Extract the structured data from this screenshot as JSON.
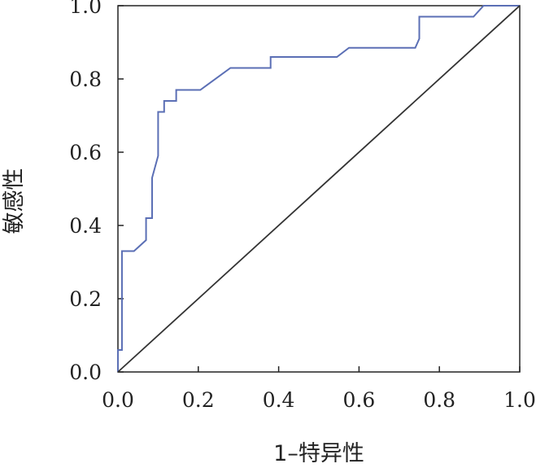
{
  "chart_data": {
    "type": "line",
    "title": "",
    "xlabel": "1–特异性",
    "ylabel": "敏感性",
    "xlim": [
      0,
      1
    ],
    "ylim": [
      0,
      1
    ],
    "x_ticks": [
      "0.0",
      "0.2",
      "0.4",
      "0.6",
      "0.8",
      "1.0"
    ],
    "y_ticks": [
      "0.0",
      "0.2",
      "0.4",
      "0.6",
      "0.8",
      "1.0"
    ],
    "grid": false,
    "legend": "none",
    "series": [
      {
        "color": "#5b6fb5",
        "points": [
          [
            0.0,
            0.0
          ],
          [
            0.0,
            0.06
          ],
          [
            0.01,
            0.06
          ],
          [
            0.01,
            0.33
          ],
          [
            0.04,
            0.33
          ],
          [
            0.07,
            0.36
          ],
          [
            0.07,
            0.42
          ],
          [
            0.085,
            0.42
          ],
          [
            0.085,
            0.53
          ],
          [
            0.1,
            0.59
          ],
          [
            0.1,
            0.71
          ],
          [
            0.115,
            0.71
          ],
          [
            0.115,
            0.74
          ],
          [
            0.145,
            0.74
          ],
          [
            0.145,
            0.77
          ],
          [
            0.205,
            0.77
          ],
          [
            0.28,
            0.83
          ],
          [
            0.38,
            0.83
          ],
          [
            0.38,
            0.86
          ],
          [
            0.545,
            0.86
          ],
          [
            0.575,
            0.885
          ],
          [
            0.74,
            0.885
          ],
          [
            0.75,
            0.91
          ],
          [
            0.75,
            0.97
          ],
          [
            0.885,
            0.97
          ],
          [
            0.91,
            1.0
          ],
          [
            1.0,
            1.0
          ]
        ]
      },
      {
        "color": "#333333",
        "points": [
          [
            0,
            0
          ],
          [
            1,
            1
          ]
        ]
      }
    ]
  }
}
